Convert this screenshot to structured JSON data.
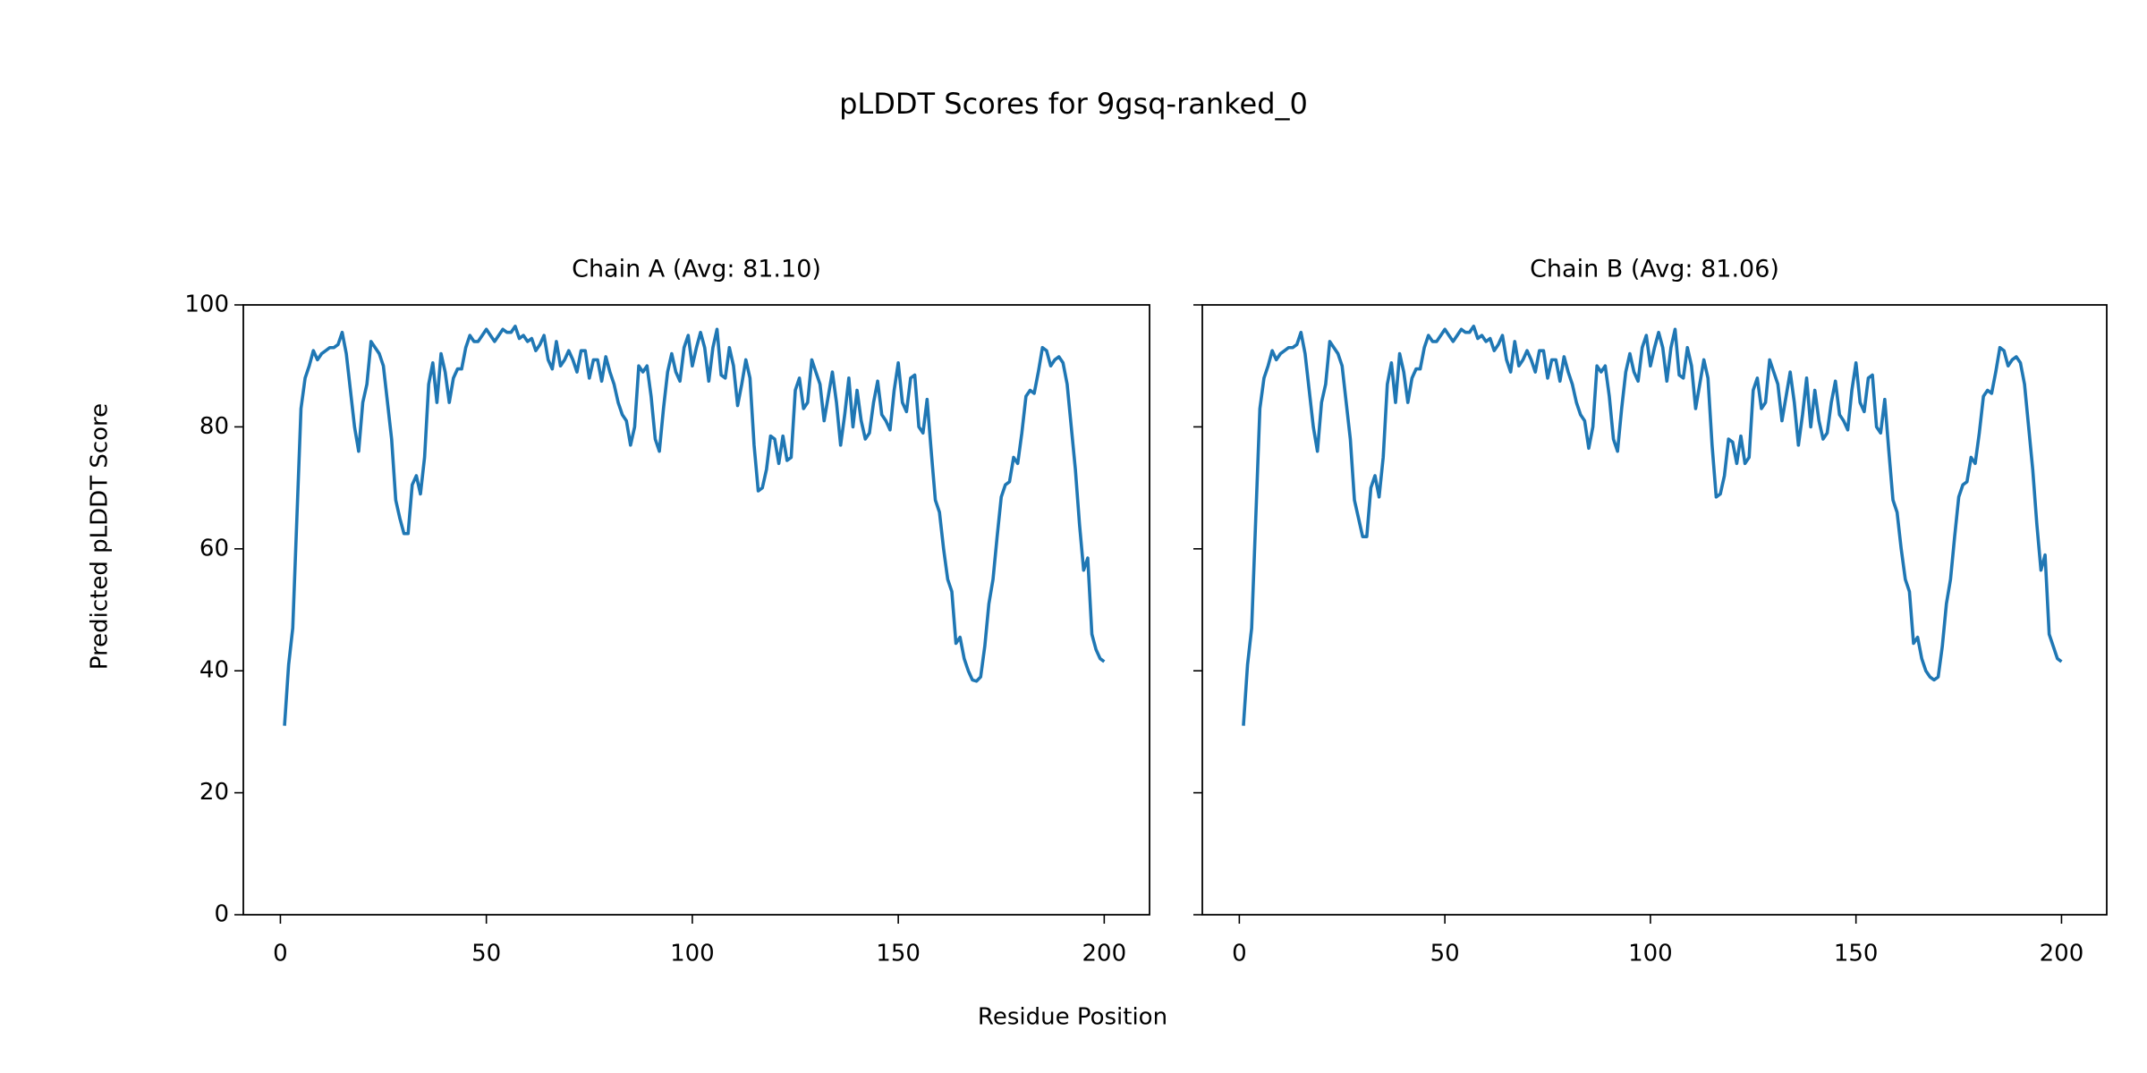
{
  "figure": {
    "title": "pLDDT Scores for 9gsq-ranked_0",
    "xlabel": "Residue Position",
    "ylabel": "Predicted pLDDT Score"
  },
  "chart_data": [
    {
      "type": "line",
      "title": "Chain A (Avg: 81.10)",
      "xlim": [
        -9,
        211
      ],
      "ylim": [
        0,
        100
      ],
      "xticks": [
        0,
        50,
        100,
        150,
        200
      ],
      "yticks": [
        0,
        20,
        40,
        60,
        80,
        100
      ],
      "ytick_labels": true,
      "x": [
        1,
        2,
        3,
        4,
        5,
        6,
        7,
        8,
        9,
        10,
        11,
        12,
        13,
        14,
        15,
        16,
        17,
        18,
        19,
        20,
        21,
        22,
        23,
        24,
        25,
        26,
        27,
        28,
        29,
        30,
        31,
        32,
        33,
        34,
        35,
        36,
        37,
        38,
        39,
        40,
        41,
        42,
        43,
        44,
        45,
        46,
        47,
        48,
        49,
        50,
        51,
        52,
        53,
        54,
        55,
        56,
        57,
        58,
        59,
        60,
        61,
        62,
        63,
        64,
        65,
        66,
        67,
        68,
        69,
        70,
        71,
        72,
        73,
        74,
        75,
        76,
        77,
        78,
        79,
        80,
        81,
        82,
        83,
        84,
        85,
        86,
        87,
        88,
        89,
        90,
        91,
        92,
        93,
        94,
        95,
        96,
        97,
        98,
        99,
        100,
        101,
        102,
        103,
        104,
        105,
        106,
        107,
        108,
        109,
        110,
        111,
        112,
        113,
        114,
        115,
        116,
        117,
        118,
        119,
        120,
        121,
        122,
        123,
        124,
        125,
        126,
        127,
        128,
        129,
        130,
        131,
        132,
        133,
        134,
        135,
        136,
        137,
        138,
        139,
        140,
        141,
        142,
        143,
        144,
        145,
        146,
        147,
        148,
        149,
        150,
        151,
        152,
        153,
        154,
        155,
        156,
        157,
        158,
        159,
        160,
        161,
        162,
        163,
        164,
        165,
        166,
        167,
        168,
        169,
        170,
        171,
        172,
        173,
        174,
        175,
        176,
        177,
        178,
        179,
        180,
        181,
        182,
        183,
        184,
        185,
        186,
        187,
        188,
        189,
        190,
        191,
        192,
        193,
        194,
        195,
        196,
        197,
        198,
        199,
        200
      ],
      "series": [
        {
          "color": "#1f77b4",
          "values": [
            31,
            41,
            47,
            65,
            83,
            88,
            90,
            92.5,
            91,
            92,
            92.5,
            93,
            93,
            93.5,
            95.5,
            92,
            86,
            80,
            76,
            84,
            87,
            94,
            93,
            92,
            90,
            84,
            78,
            68,
            65,
            62.5,
            62.5,
            70.5,
            72,
            69,
            75,
            87,
            90.5,
            84,
            92,
            89,
            84,
            88,
            89.5,
            89.5,
            93,
            95,
            94,
            94,
            95,
            96,
            95,
            94,
            95,
            96,
            95.5,
            95.5,
            96.5,
            94.5,
            95,
            94,
            94.5,
            92.5,
            93.5,
            95,
            91,
            89.5,
            94,
            90,
            91,
            92.5,
            91,
            89,
            92.5,
            92.5,
            88,
            91,
            91,
            87.5,
            91.5,
            89,
            87,
            84,
            82,
            81,
            77,
            80,
            90,
            89,
            90,
            85,
            78,
            76,
            83,
            89,
            92,
            89,
            87.5,
            93,
            95,
            90,
            93,
            95.5,
            93,
            87.5,
            93,
            96,
            88.5,
            88,
            93,
            90,
            83.5,
            87,
            91,
            88,
            77,
            69.5,
            70,
            73,
            78.5,
            78,
            74,
            78.5,
            74.5,
            75,
            86,
            88,
            83,
            84,
            91,
            89,
            87,
            81,
            85,
            89,
            84,
            77,
            82,
            88,
            80,
            86,
            81,
            78,
            79,
            84,
            87.5,
            82,
            81,
            79.5,
            86,
            90.5,
            84,
            82.5,
            88,
            88.5,
            80,
            79,
            84.5,
            76,
            68,
            66,
            60,
            55,
            53,
            44.5,
            45.5,
            42,
            40,
            38.5,
            38.3,
            39,
            44,
            51,
            55,
            62,
            68.5,
            70.5,
            71,
            75,
            74,
            79,
            85,
            86,
            85.5,
            89,
            93,
            92.5,
            90,
            91,
            91.5,
            90.5,
            87,
            80,
            73,
            64,
            56.5,
            58.5,
            46,
            43.5,
            42,
            41.5
          ]
        }
      ]
    },
    {
      "type": "line",
      "title": "Chain B (Avg: 81.06)",
      "xlim": [
        -9,
        211
      ],
      "ylim": [
        0,
        100
      ],
      "xticks": [
        0,
        50,
        100,
        150,
        200
      ],
      "yticks": [
        0,
        20,
        40,
        60,
        80,
        100
      ],
      "ytick_labels": false,
      "x": [
        1,
        2,
        3,
        4,
        5,
        6,
        7,
        8,
        9,
        10,
        11,
        12,
        13,
        14,
        15,
        16,
        17,
        18,
        19,
        20,
        21,
        22,
        23,
        24,
        25,
        26,
        27,
        28,
        29,
        30,
        31,
        32,
        33,
        34,
        35,
        36,
        37,
        38,
        39,
        40,
        41,
        42,
        43,
        44,
        45,
        46,
        47,
        48,
        49,
        50,
        51,
        52,
        53,
        54,
        55,
        56,
        57,
        58,
        59,
        60,
        61,
        62,
        63,
        64,
        65,
        66,
        67,
        68,
        69,
        70,
        71,
        72,
        73,
        74,
        75,
        76,
        77,
        78,
        79,
        80,
        81,
        82,
        83,
        84,
        85,
        86,
        87,
        88,
        89,
        90,
        91,
        92,
        93,
        94,
        95,
        96,
        97,
        98,
        99,
        100,
        101,
        102,
        103,
        104,
        105,
        106,
        107,
        108,
        109,
        110,
        111,
        112,
        113,
        114,
        115,
        116,
        117,
        118,
        119,
        120,
        121,
        122,
        123,
        124,
        125,
        126,
        127,
        128,
        129,
        130,
        131,
        132,
        133,
        134,
        135,
        136,
        137,
        138,
        139,
        140,
        141,
        142,
        143,
        144,
        145,
        146,
        147,
        148,
        149,
        150,
        151,
        152,
        153,
        154,
        155,
        156,
        157,
        158,
        159,
        160,
        161,
        162,
        163,
        164,
        165,
        166,
        167,
        168,
        169,
        170,
        171,
        172,
        173,
        174,
        175,
        176,
        177,
        178,
        179,
        180,
        181,
        182,
        183,
        184,
        185,
        186,
        187,
        188,
        189,
        190,
        191,
        192,
        193,
        194,
        195,
        196,
        197,
        198,
        199,
        200
      ],
      "series": [
        {
          "color": "#1f77b4",
          "values": [
            31,
            41,
            47,
            65,
            83,
            88,
            90,
            92.5,
            91,
            92,
            92.5,
            93,
            93,
            93.5,
            95.5,
            92,
            86,
            80,
            76,
            84,
            87,
            94,
            93,
            92,
            90,
            84,
            78,
            68,
            65,
            62,
            62,
            70,
            72,
            68.5,
            75,
            87,
            90.5,
            84,
            92,
            89,
            84,
            88,
            89.5,
            89.5,
            93,
            95,
            94,
            94,
            95,
            96,
            95,
            94,
            95,
            96,
            95.5,
            95.5,
            96.5,
            94.5,
            95,
            94,
            94.5,
            92.5,
            93.5,
            95,
            91,
            89,
            94,
            90,
            91,
            92.5,
            91,
            89,
            92.5,
            92.5,
            88,
            91,
            91,
            87.5,
            91.5,
            89,
            87,
            84,
            82,
            81,
            76.5,
            80,
            90,
            89,
            90,
            85,
            78,
            76,
            83,
            89,
            92,
            89,
            87.5,
            93,
            95,
            90,
            93,
            95.5,
            93,
            87.5,
            93,
            96,
            88.5,
            88,
            93,
            90,
            83,
            87,
            91,
            88,
            77,
            68.5,
            69,
            72,
            78,
            77.5,
            74,
            78.5,
            74,
            75,
            86,
            88,
            83,
            84,
            91,
            89,
            87,
            81,
            85,
            89,
            84,
            77,
            82,
            88,
            80,
            86,
            81,
            78,
            79,
            84,
            87.5,
            82,
            81,
            79.5,
            86,
            90.5,
            84,
            82.5,
            88,
            88.5,
            80,
            79,
            84.5,
            76,
            68,
            66,
            60,
            55,
            53,
            44.5,
            45.5,
            42,
            40,
            39,
            38.5,
            39,
            44,
            51,
            55,
            62,
            68.5,
            70.5,
            71,
            75,
            74,
            79,
            85,
            86,
            85.5,
            89,
            93,
            92.5,
            90,
            91,
            91.5,
            90.5,
            87,
            80,
            73,
            64,
            56.5,
            59,
            46,
            44,
            42,
            41.5
          ]
        }
      ]
    }
  ]
}
